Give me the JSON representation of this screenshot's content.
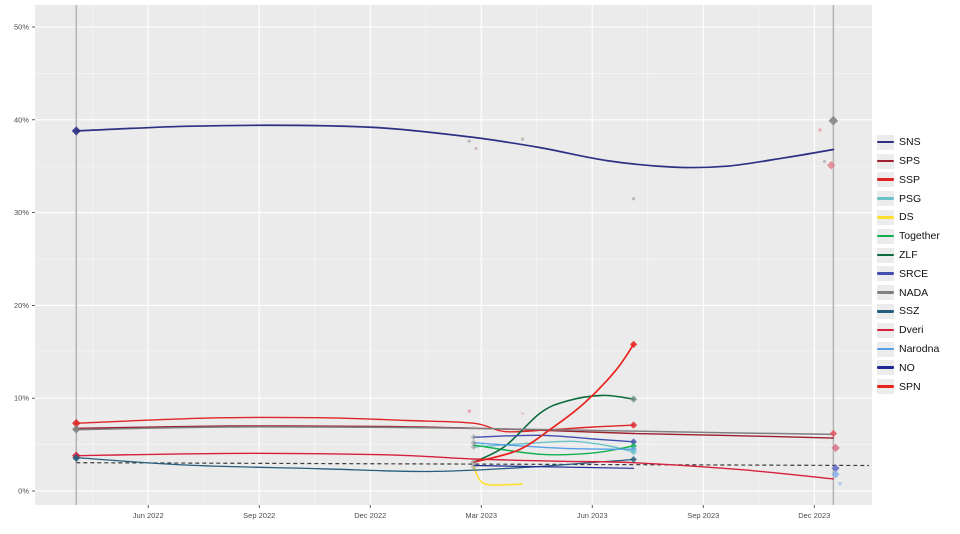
{
  "figure": {
    "background": "#ffffff",
    "panel_background": "#ebebeb",
    "grid_major_color": "#ffffff",
    "grid_minor_color": "rgba(255,255,255,0.55)",
    "axis_text_color": "#4d4d4d",
    "tick_mark_color": "#333333",
    "election_line_color": "#b3b3b3"
  },
  "chart_data": {
    "type": "line",
    "title": "",
    "xlabel": "",
    "ylabel": "",
    "legend_position": "right",
    "grid": "on",
    "x_domain": [
      2022.162,
      2024.047
    ],
    "y_domain": [
      -1.51,
      52.37
    ],
    "x_ticks": [
      {
        "v": 2022.417,
        "label": "Jun 2022"
      },
      {
        "v": 2022.667,
        "label": "Sep 2022"
      },
      {
        "v": 2022.917,
        "label": "Dec 2022"
      },
      {
        "v": 2023.167,
        "label": "Mar 2023"
      },
      {
        "v": 2023.417,
        "label": "Jun 2023"
      },
      {
        "v": 2023.667,
        "label": "Sep 2023"
      },
      {
        "v": 2023.917,
        "label": "Dec 2023"
      }
    ],
    "x_minor_ticks": [
      2022.292,
      2022.542,
      2022.792,
      2023.042,
      2023.292,
      2023.542,
      2023.792
    ],
    "y_ticks": [
      {
        "v": 0,
        "label": "0%"
      },
      {
        "v": 10,
        "label": "10%"
      },
      {
        "v": 20,
        "label": "20%"
      },
      {
        "v": 30,
        "label": "30%"
      },
      {
        "v": 40,
        "label": "40%"
      },
      {
        "v": 50,
        "label": "50%"
      }
    ],
    "y_minor_ticks": [
      5,
      15,
      25,
      35,
      45
    ],
    "vlines": [
      {
        "x": 2022.255,
        "name": "election-2022-line"
      },
      {
        "x": 2023.96,
        "name": "election-2023-line"
      }
    ],
    "threshold": {
      "name": "threshold-dashed-line",
      "color": "#3d3d3d",
      "dashed": true,
      "points": [
        [
          2022.255,
          3.05
        ],
        [
          2024.04,
          2.75
        ]
      ]
    },
    "series": [
      {
        "name": "SNS",
        "color": "#2d2f83",
        "width": 1.7,
        "points": [
          [
            2022.255,
            38.8
          ],
          [
            2022.5,
            39.3
          ],
          [
            2022.75,
            39.4
          ],
          [
            2022.95,
            39.1
          ],
          [
            2023.15,
            38.1
          ],
          [
            2023.3,
            37.0
          ],
          [
            2023.45,
            35.6
          ],
          [
            2023.6,
            34.9
          ],
          [
            2023.72,
            35.0
          ],
          [
            2023.85,
            35.9
          ],
          [
            2023.96,
            36.8
          ]
        ]
      },
      {
        "name": "SPS",
        "color": "#9e1f2e",
        "width": 1.4,
        "points": [
          [
            2022.255,
            6.75
          ],
          [
            2022.6,
            7.0
          ],
          [
            2022.95,
            6.95
          ],
          [
            2023.2,
            6.7
          ],
          [
            2023.51,
            6.2
          ],
          [
            2023.75,
            5.95
          ],
          [
            2023.96,
            5.7
          ]
        ]
      },
      {
        "name": "SSP",
        "color": "#e02426",
        "width": 1.4,
        "points": [
          [
            2022.255,
            7.3
          ],
          [
            2022.55,
            7.85
          ],
          [
            2022.8,
            7.9
          ],
          [
            2023.0,
            7.6
          ],
          [
            2023.15,
            7.3
          ],
          [
            2023.22,
            6.4
          ],
          [
            2023.32,
            6.6
          ],
          [
            2023.42,
            6.9
          ],
          [
            2023.51,
            7.1
          ]
        ]
      },
      {
        "name": "PSG",
        "color": "#69c3c6",
        "width": 1.4,
        "points": [
          [
            2023.15,
            4.75
          ],
          [
            2023.28,
            5.15
          ],
          [
            2023.37,
            5.35
          ],
          [
            2023.45,
            4.9
          ],
          [
            2023.51,
            4.2
          ]
        ]
      },
      {
        "name": "DS",
        "color": "#ffdf30",
        "width": 1.6,
        "points": [
          [
            2023.15,
            2.6
          ],
          [
            2023.165,
            1.1
          ],
          [
            2023.19,
            0.65
          ],
          [
            2023.26,
            0.75
          ]
        ]
      },
      {
        "name": "Together",
        "color": "#12b051",
        "width": 1.4,
        "points": [
          [
            2023.15,
            4.95
          ],
          [
            2023.3,
            3.95
          ],
          [
            2023.42,
            4.1
          ],
          [
            2023.51,
            4.85
          ]
        ]
      },
      {
        "name": "ZLF",
        "color": "#0c6b3d",
        "width": 1.6,
        "points": [
          [
            2023.15,
            3.1
          ],
          [
            2023.22,
            4.8
          ],
          [
            2023.3,
            8.4
          ],
          [
            2023.36,
            9.7
          ],
          [
            2023.44,
            10.3
          ],
          [
            2023.51,
            9.9
          ]
        ]
      },
      {
        "name": "SRCE",
        "color": "#4150b0",
        "width": 1.4,
        "points": [
          [
            2023.15,
            5.8
          ],
          [
            2023.3,
            6.0
          ],
          [
            2023.42,
            5.6
          ],
          [
            2023.51,
            5.3
          ]
        ]
      },
      {
        "name": "NADA",
        "color": "#808080",
        "width": 1.5,
        "points": [
          [
            2022.255,
            6.6
          ],
          [
            2022.6,
            6.9
          ],
          [
            2022.95,
            6.85
          ],
          [
            2023.2,
            6.7
          ],
          [
            2023.51,
            6.45
          ],
          [
            2023.75,
            6.25
          ],
          [
            2023.96,
            6.1
          ]
        ]
      },
      {
        "name": "SSZ",
        "color": "#265d7d",
        "width": 1.3,
        "points": [
          [
            2022.255,
            3.6
          ],
          [
            2022.5,
            2.8
          ],
          [
            2022.8,
            2.4
          ],
          [
            2023.05,
            2.1
          ],
          [
            2023.25,
            2.5
          ],
          [
            2023.4,
            3.0
          ],
          [
            2023.51,
            3.4
          ]
        ]
      },
      {
        "name": "Dveri",
        "color": "#d6203e",
        "width": 1.4,
        "points": [
          [
            2022.255,
            3.8
          ],
          [
            2022.6,
            4.05
          ],
          [
            2022.95,
            3.9
          ],
          [
            2023.15,
            3.45
          ],
          [
            2023.35,
            3.2
          ],
          [
            2023.51,
            3.05
          ],
          [
            2023.75,
            2.3
          ],
          [
            2023.96,
            1.3
          ]
        ]
      },
      {
        "name": "Narodna",
        "color": "#57a0e8",
        "width": 1.3,
        "points": [
          [
            2023.15,
            5.2
          ],
          [
            2023.35,
            4.6
          ],
          [
            2023.51,
            4.5
          ]
        ]
      },
      {
        "name": "NO",
        "color": "#1d2796",
        "width": 1.2,
        "points": [
          [
            2023.15,
            2.75
          ],
          [
            2023.51,
            2.45
          ]
        ]
      },
      {
        "name": "SPN",
        "color": "#e8241f",
        "width": 1.7,
        "points": [
          [
            2023.15,
            3.1
          ],
          [
            2023.25,
            4.4
          ],
          [
            2023.33,
            6.9
          ],
          [
            2023.4,
            9.5
          ],
          [
            2023.47,
            13.0
          ],
          [
            2023.51,
            15.8
          ]
        ]
      }
    ],
    "points": [
      [
        2022.255,
        38.8,
        "#2d2f83",
        "diamond",
        3.2,
        0.9
      ],
      [
        2022.255,
        7.3,
        "#e02426",
        "diamond",
        3.0,
        0.9
      ],
      [
        2022.255,
        6.65,
        "#808080",
        "diamond",
        3.0,
        0.9
      ],
      [
        2022.255,
        3.8,
        "#d6203e",
        "diamond",
        3.0,
        0.9
      ],
      [
        2022.255,
        3.55,
        "#265d7d",
        "diamond",
        2.8,
        0.9
      ],
      [
        2023.14,
        37.7,
        "#9a9a9a",
        "circle",
        1.7,
        0.6
      ],
      [
        2023.155,
        36.9,
        "#b08a95",
        "circle",
        1.5,
        0.55
      ],
      [
        2023.26,
        37.9,
        "#9a9a9a",
        "circle",
        1.6,
        0.6
      ],
      [
        2023.51,
        31.5,
        "#9a9a9a",
        "circle",
        1.7,
        0.6
      ],
      [
        2023.14,
        8.6,
        "#e27888",
        "circle",
        1.7,
        0.6
      ],
      [
        2023.26,
        8.35,
        "#e9a7ad",
        "circle",
        1.5,
        0.5
      ],
      [
        2023.15,
        6.8,
        "#9a9a9a",
        "circle",
        1.6,
        0.55
      ],
      [
        2023.17,
        4.95,
        "#74c6c8",
        "circle",
        1.5,
        0.55
      ],
      [
        2023.27,
        5.1,
        "#74c6c8",
        "circle",
        1.5,
        0.55
      ],
      [
        2023.15,
        5.8,
        "#8d8d8d",
        "diamond",
        2.2,
        0.5
      ],
      [
        2023.15,
        5.2,
        "#8d8d8d",
        "diamond",
        2.2,
        0.5
      ],
      [
        2023.15,
        4.75,
        "#8d8d8d",
        "diamond",
        2.2,
        0.5
      ],
      [
        2023.15,
        3.1,
        "#8d8d8d",
        "diamond",
        2.4,
        0.55
      ],
      [
        2023.15,
        2.6,
        "#8d8d8d",
        "diamond",
        2.2,
        0.5
      ],
      [
        2023.51,
        15.8,
        "#e8241f",
        "diamond",
        2.6,
        0.85
      ],
      [
        2023.51,
        9.9,
        "#6f8f7f",
        "diamond",
        2.6,
        0.8
      ],
      [
        2023.51,
        7.1,
        "#e02426",
        "diamond",
        2.6,
        0.8
      ],
      [
        2023.51,
        5.3,
        "#4150b0",
        "diamond",
        2.4,
        0.8
      ],
      [
        2023.51,
        4.85,
        "#12b051",
        "diamond",
        2.4,
        0.8
      ],
      [
        2023.51,
        4.5,
        "#57a0e8",
        "diamond",
        2.4,
        0.8
      ],
      [
        2023.51,
        4.2,
        "#69c3c6",
        "diamond",
        2.4,
        0.8
      ],
      [
        2023.51,
        3.4,
        "#265d7d",
        "diamond",
        2.4,
        0.8
      ],
      [
        2023.96,
        39.9,
        "#8a8a8a",
        "diamond",
        3.4,
        0.95
      ],
      [
        2023.93,
        38.9,
        "#e79aa4",
        "circle",
        1.8,
        0.75
      ],
      [
        2023.94,
        35.5,
        "#9a9a9a",
        "circle",
        1.6,
        0.6
      ],
      [
        2023.955,
        35.1,
        "#e4808d",
        "diamond",
        3.0,
        0.85
      ],
      [
        2023.96,
        6.2,
        "#e05560",
        "diamond",
        2.6,
        0.85
      ],
      [
        2023.965,
        4.65,
        "#d77383",
        "diamond",
        3.0,
        0.85
      ],
      [
        2023.965,
        2.45,
        "#5f68c9",
        "diamond",
        2.8,
        0.85
      ],
      [
        2023.965,
        1.8,
        "#7fa9e6",
        "diamond",
        2.8,
        0.8
      ],
      [
        2023.975,
        0.8,
        "#93bbeb",
        "circle",
        1.8,
        0.6
      ]
    ]
  },
  "legend": {
    "items": [
      {
        "label": "SNS",
        "color": "#2d2f83"
      },
      {
        "label": "SPS",
        "color": "#9e1f2e"
      },
      {
        "label": "SSP",
        "color": "#e02426"
      },
      {
        "label": "PSG",
        "color": "#69c3c6"
      },
      {
        "label": "DS",
        "color": "#ffdf30"
      },
      {
        "label": "Together",
        "color": "#12b051"
      },
      {
        "label": "ZLF",
        "color": "#0c6b3d"
      },
      {
        "label": "SRCE",
        "color": "#4150b0"
      },
      {
        "label": "NADA",
        "color": "#808080"
      },
      {
        "label": "SSZ",
        "color": "#265d7d"
      },
      {
        "label": "Dveri",
        "color": "#d6203e"
      },
      {
        "label": "Narodna",
        "color": "#57a0e8"
      },
      {
        "label": "NO",
        "color": "#1d2796"
      },
      {
        "label": "SPN",
        "color": "#e8241f"
      }
    ]
  }
}
